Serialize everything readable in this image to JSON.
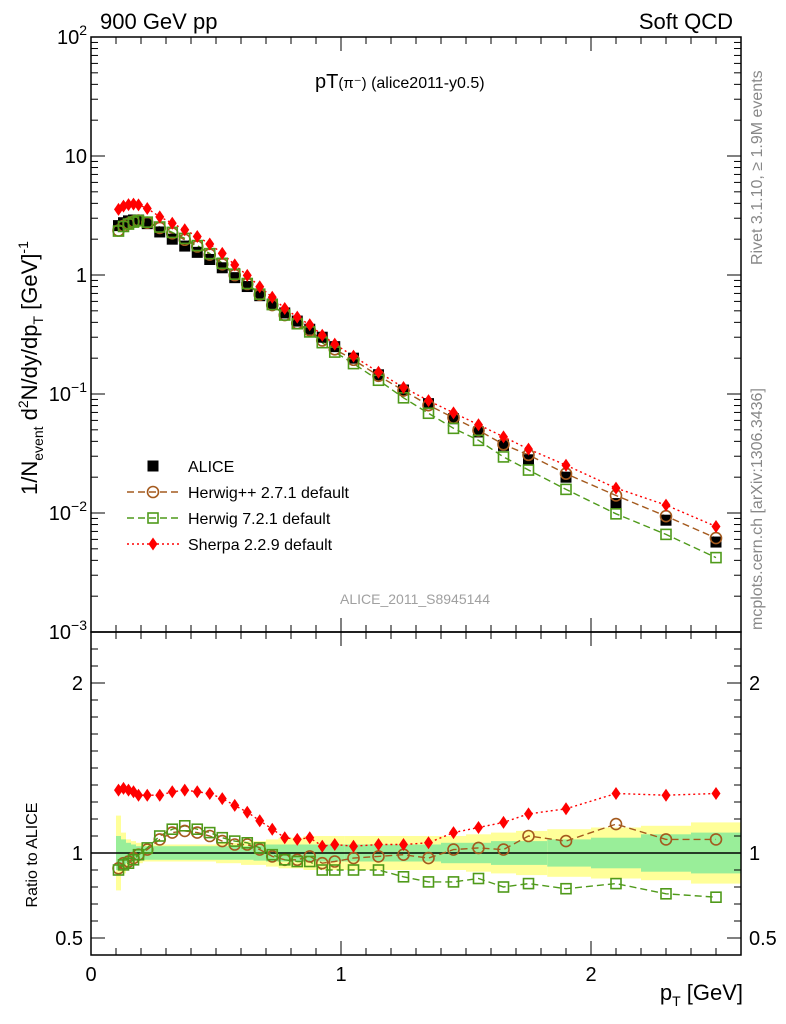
{
  "header": {
    "left": "900 GeV pp",
    "right": "Soft QCD"
  },
  "side": {
    "right_top": "Rivet 3.1.10, ≥ 1.9M events",
    "right_bottom": "mcplots.cern.ch [arXiv:1306.3436]"
  },
  "chart_data": {
    "type": "scatter",
    "title": "pT(π⁻) (alice2011-y0.5)",
    "title_main": "pT",
    "title_particle": "(π⁻)",
    "title_tag": "(alice2011-y0.5)",
    "watermark": "ALICE_2011_S8945144",
    "x_label": "p",
    "x_label_sub": "T",
    "x_label_unit": "[GeV]",
    "y_label_parts": [
      "1/N",
      "event",
      "d",
      "2",
      "N/dy/dp",
      "T",
      "[GeV]",
      "-1"
    ],
    "ratio_ylabel": "Ratio to ALICE",
    "xlim": [
      0,
      2.6
    ],
    "ylim": [
      0.001,
      100
    ],
    "y_log": true,
    "ratio_ylim": [
      0.4,
      2.3
    ],
    "x_ticks": [
      {
        "v": 0,
        "label": "0"
      },
      {
        "v": 1,
        "label": "1"
      },
      {
        "v": 2,
        "label": "2"
      }
    ],
    "y_ticks": [
      {
        "v": 100,
        "label": "10",
        "sup": "2"
      },
      {
        "v": 10,
        "label": "10",
        "sup": ""
      },
      {
        "v": 1,
        "label": "1",
        "sup": ""
      },
      {
        "v": 0.1,
        "label": "10",
        "sup": "−1"
      },
      {
        "v": 0.01,
        "label": "10",
        "sup": "−2"
      },
      {
        "v": 0.001,
        "label": "10",
        "sup": "−3"
      }
    ],
    "ratio_ticks": [
      {
        "v": 0.5,
        "label": "0.5"
      },
      {
        "v": 1,
        "label": "1"
      },
      {
        "v": 2,
        "label": "2"
      }
    ],
    "x": [
      0.11,
      0.13,
      0.15,
      0.17,
      0.19,
      0.225,
      0.275,
      0.325,
      0.375,
      0.425,
      0.475,
      0.525,
      0.575,
      0.625,
      0.675,
      0.725,
      0.775,
      0.825,
      0.875,
      0.925,
      0.975,
      1.05,
      1.15,
      1.25,
      1.35,
      1.45,
      1.55,
      1.65,
      1.75,
      1.9,
      2.1,
      2.3,
      2.5
    ],
    "band_inner": [
      0.1,
      0.08,
      0.06,
      0.05,
      0.04,
      0.04,
      0.04,
      0.04,
      0.04,
      0.04,
      0.04,
      0.04,
      0.04,
      0.04,
      0.045,
      0.05,
      0.05,
      0.05,
      0.05,
      0.05,
      0.05,
      0.05,
      0.05,
      0.05,
      0.05,
      0.06,
      0.06,
      0.07,
      0.07,
      0.08,
      0.09,
      0.11,
      0.12
    ],
    "band_outer": [
      0.22,
      0.12,
      0.08,
      0.07,
      0.06,
      0.05,
      0.05,
      0.05,
      0.05,
      0.05,
      0.05,
      0.06,
      0.06,
      0.07,
      0.07,
      0.08,
      0.09,
      0.09,
      0.1,
      0.1,
      0.1,
      0.1,
      0.1,
      0.1,
      0.1,
      0.1,
      0.11,
      0.12,
      0.13,
      0.14,
      0.15,
      0.16,
      0.18
    ],
    "series": [
      {
        "name": "ALICE",
        "color": "#000000",
        "marker": "square-filled",
        "line": "none",
        "values": [
          2.6,
          2.75,
          2.85,
          2.9,
          2.9,
          2.7,
          2.3,
          2.0,
          1.75,
          1.55,
          1.35,
          1.15,
          0.95,
          0.8,
          0.67,
          0.57,
          0.48,
          0.41,
          0.35,
          0.3,
          0.25,
          0.2,
          0.145,
          0.108,
          0.083,
          0.062,
          0.048,
          0.037,
          0.028,
          0.02,
          0.012,
          0.0087,
          0.0057
        ]
      },
      {
        "name": "Herwig++ 2.7.1 default",
        "color": "#a45a1e",
        "marker": "circle-open",
        "line": "dashed",
        "ratio": [
          0.91,
          0.94,
          0.95,
          0.97,
          0.99,
          1.02,
          1.08,
          1.12,
          1.13,
          1.12,
          1.1,
          1.07,
          1.05,
          1.05,
          1.02,
          0.98,
          0.96,
          0.96,
          0.98,
          0.94,
          0.95,
          0.97,
          0.98,
          0.99,
          0.97,
          1.02,
          1.03,
          1.02,
          1.1,
          1.07,
          1.17,
          1.08,
          1.08
        ]
      },
      {
        "name": "Herwig 7.2.1 default",
        "color": "#4f9a1a",
        "marker": "square-open",
        "line": "dashed",
        "ratio": [
          0.9,
          0.93,
          0.94,
          0.96,
          0.99,
          1.03,
          1.1,
          1.14,
          1.16,
          1.14,
          1.12,
          1.09,
          1.07,
          1.06,
          1.03,
          0.99,
          0.96,
          0.95,
          0.95,
          0.9,
          0.9,
          0.9,
          0.9,
          0.86,
          0.83,
          0.83,
          0.85,
          0.8,
          0.82,
          0.79,
          0.82,
          0.76,
          0.74
        ]
      },
      {
        "name": "Sherpa 2.2.9 default",
        "color": "#ff0000",
        "marker": "diamond-filled",
        "line": "dotted",
        "ratio": [
          1.37,
          1.38,
          1.37,
          1.36,
          1.34,
          1.34,
          1.34,
          1.36,
          1.37,
          1.36,
          1.35,
          1.32,
          1.28,
          1.24,
          1.19,
          1.14,
          1.09,
          1.08,
          1.09,
          1.04,
          1.05,
          1.04,
          1.05,
          1.05,
          1.06,
          1.12,
          1.15,
          1.18,
          1.23,
          1.26,
          1.35,
          1.34,
          1.35
        ]
      }
    ]
  }
}
